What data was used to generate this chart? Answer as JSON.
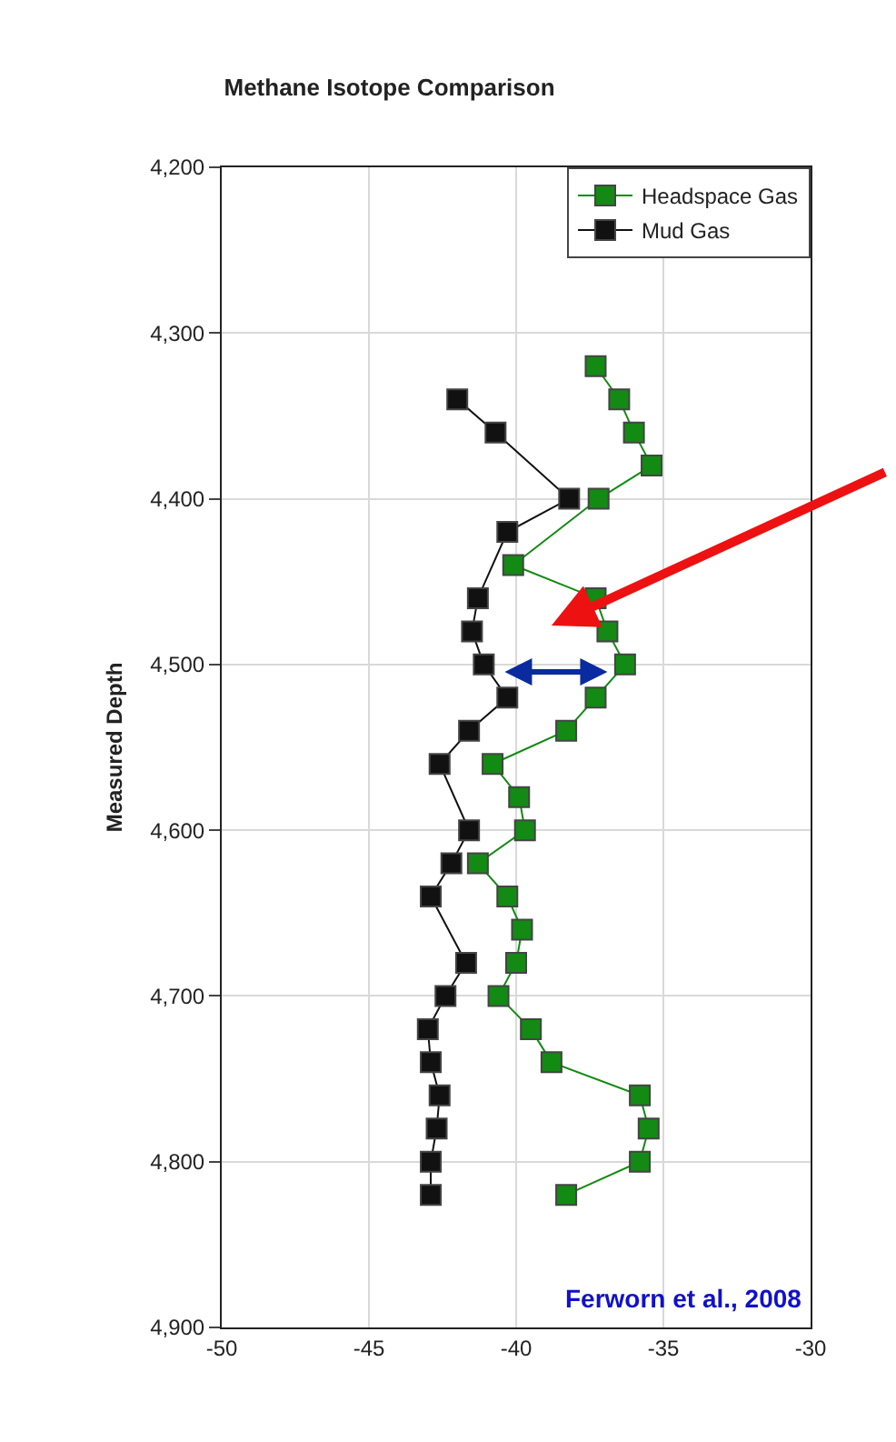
{
  "chart_data": {
    "type": "line",
    "title": "Methane Isotope Comparison",
    "ylabel": "Measured Depth",
    "orientation": "horizontal",
    "marker": "square",
    "grid": true,
    "legend": "top right",
    "xlim": [
      -50,
      -30
    ],
    "xticks": [
      -50,
      -45,
      -40,
      -35,
      -30
    ],
    "ylim": [
      4900,
      4200
    ],
    "yticks": [
      {
        "value": 4200,
        "label": "4,200"
      },
      {
        "value": 4300,
        "label": "4,300"
      },
      {
        "value": 4400,
        "label": "4,400"
      },
      {
        "value": 4500,
        "label": "4,500"
      },
      {
        "value": 4600,
        "label": "4,600"
      },
      {
        "value": 4700,
        "label": "4,700"
      },
      {
        "value": 4800,
        "label": "4,800"
      },
      {
        "value": 4900,
        "label": "4,900"
      }
    ],
    "series": [
      {
        "name": "Headspace Gas",
        "color": "#138a13",
        "x": [
          4320,
          4340,
          4360,
          4380,
          4400,
          4440,
          4460,
          4480,
          4500,
          4520,
          4540,
          4560,
          4580,
          4600,
          4620,
          4640,
          4660,
          4680,
          4700,
          4720,
          4740,
          4760,
          4780,
          4800,
          4820
        ],
        "values": [
          -37.3,
          -36.5,
          -36.0,
          -35.4,
          -37.2,
          -40.1,
          -37.3,
          -36.9,
          -36.3,
          -37.3,
          -38.3,
          -40.8,
          -39.9,
          -39.7,
          -41.3,
          -40.3,
          -39.8,
          -40.0,
          -40.6,
          -39.5,
          -38.8,
          -35.8,
          -35.5,
          -35.8,
          -38.3
        ]
      },
      {
        "name": "Mud Gas",
        "color": "#111111",
        "x": [
          4340,
          4360,
          4400,
          4420,
          4460,
          4480,
          4500,
          4520,
          4540,
          4560,
          4600,
          4620,
          4640,
          4680,
          4700,
          4720,
          4740,
          4760,
          4780,
          4800,
          4820
        ],
        "values": [
          -42.0,
          -40.7,
          -38.2,
          -40.3,
          -41.3,
          -41.5,
          -41.1,
          -40.3,
          -41.6,
          -42.6,
          -41.6,
          -42.2,
          -42.9,
          -41.7,
          -42.4,
          -43.0,
          -42.9,
          -42.6,
          -42.7,
          -42.9,
          -42.9
        ]
      }
    ],
    "annotations": [
      "Ferworn et al., 2008"
    ]
  }
}
